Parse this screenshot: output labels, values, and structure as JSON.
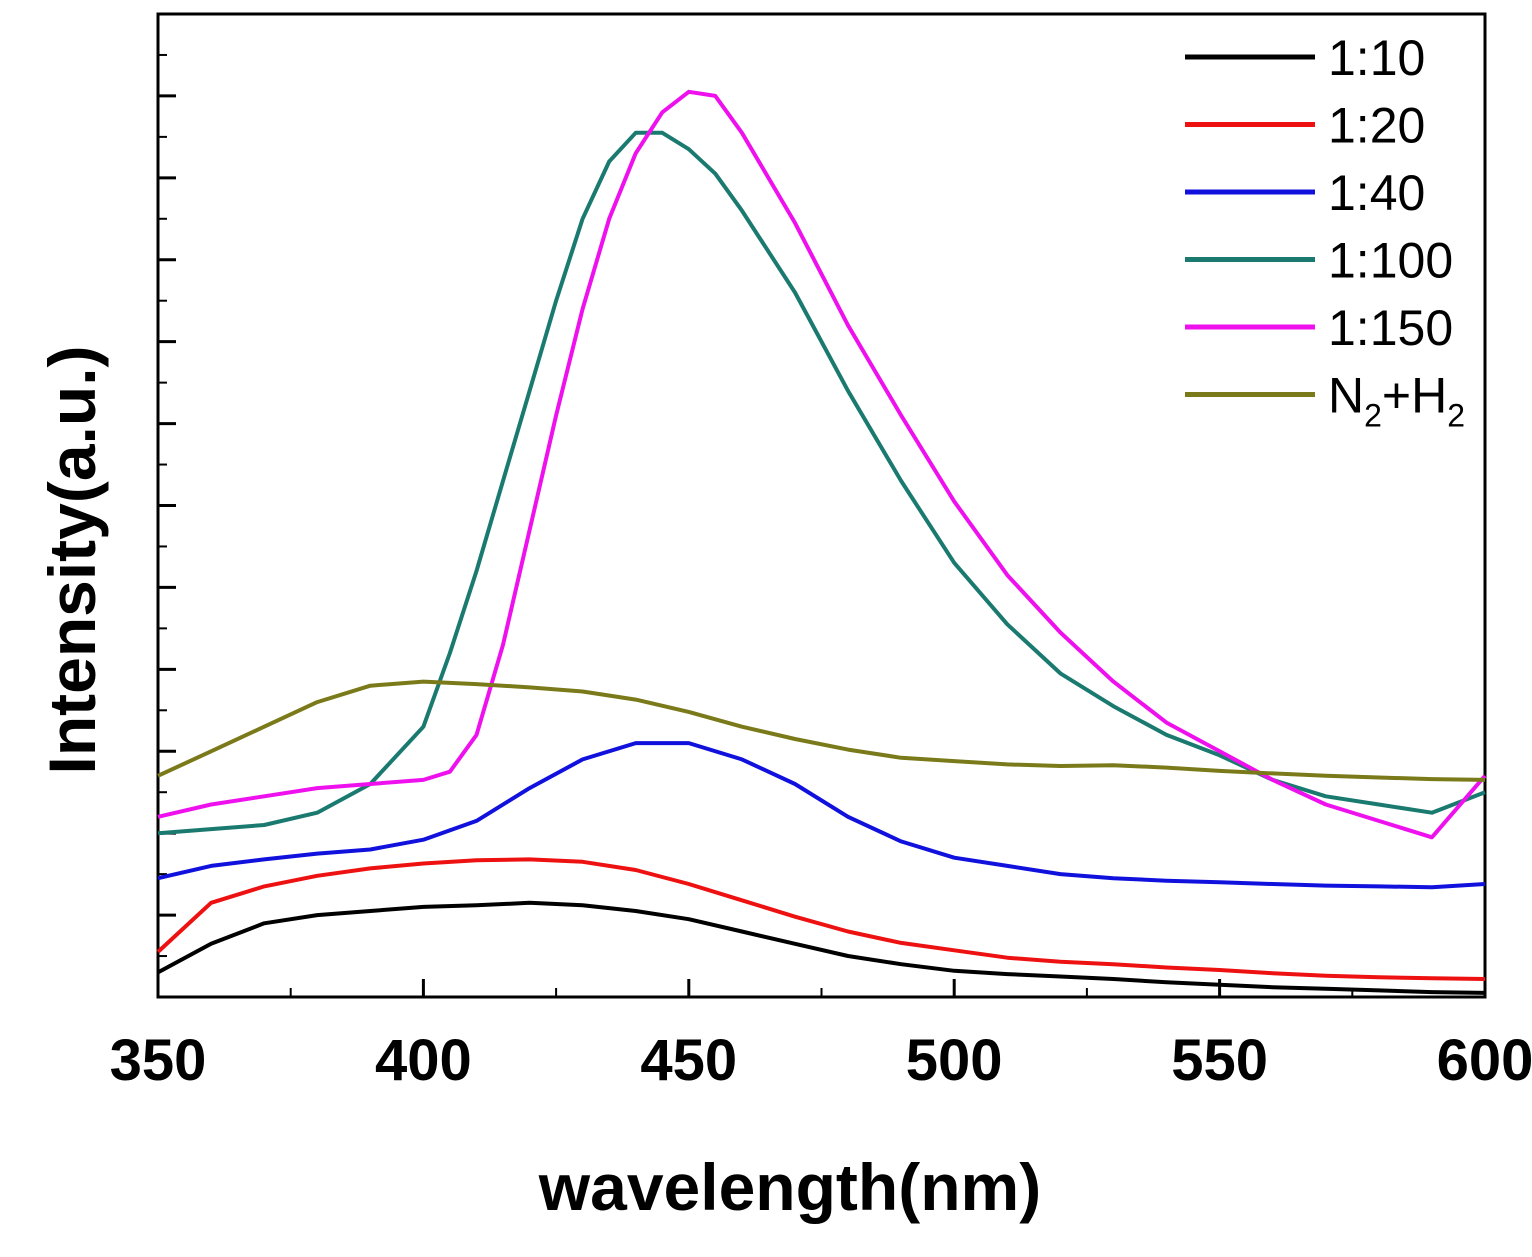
{
  "chart_data": {
    "type": "line",
    "title": "",
    "xlabel": "wavelength(nm)",
    "ylabel": "Intensity(a.u.)",
    "xlim": [
      350,
      600
    ],
    "ylim": [
      0,
      12
    ],
    "x_ticks": [
      350,
      400,
      450,
      500,
      550,
      600
    ],
    "x_tick_labels": [
      "350",
      "400",
      "450",
      "500",
      "550",
      "600"
    ],
    "y_tick_labels_shown": false,
    "grid": false,
    "legend_position": "top-right",
    "series": [
      {
        "name": "1:10",
        "color": "#000000",
        "points": [
          [
            350,
            0.3
          ],
          [
            360,
            0.65
          ],
          [
            370,
            0.9
          ],
          [
            380,
            1.0
          ],
          [
            390,
            1.05
          ],
          [
            400,
            1.1
          ],
          [
            410,
            1.12
          ],
          [
            420,
            1.15
          ],
          [
            430,
            1.12
          ],
          [
            440,
            1.05
          ],
          [
            450,
            0.95
          ],
          [
            460,
            0.8
          ],
          [
            470,
            0.65
          ],
          [
            480,
            0.5
          ],
          [
            490,
            0.4
          ],
          [
            500,
            0.32
          ],
          [
            510,
            0.28
          ],
          [
            520,
            0.25
          ],
          [
            530,
            0.22
          ],
          [
            540,
            0.18
          ],
          [
            550,
            0.15
          ],
          [
            560,
            0.12
          ],
          [
            570,
            0.1
          ],
          [
            580,
            0.08
          ],
          [
            590,
            0.06
          ],
          [
            600,
            0.05
          ]
        ]
      },
      {
        "name": "1:20",
        "color": "#ee1111",
        "points": [
          [
            350,
            0.55
          ],
          [
            360,
            1.15
          ],
          [
            370,
            1.35
          ],
          [
            380,
            1.48
          ],
          [
            390,
            1.57
          ],
          [
            400,
            1.63
          ],
          [
            410,
            1.67
          ],
          [
            420,
            1.68
          ],
          [
            430,
            1.65
          ],
          [
            440,
            1.55
          ],
          [
            450,
            1.38
          ],
          [
            460,
            1.18
          ],
          [
            470,
            0.98
          ],
          [
            480,
            0.8
          ],
          [
            490,
            0.66
          ],
          [
            500,
            0.57
          ],
          [
            510,
            0.48
          ],
          [
            520,
            0.43
          ],
          [
            530,
            0.4
          ],
          [
            540,
            0.36
          ],
          [
            550,
            0.33
          ],
          [
            560,
            0.29
          ],
          [
            570,
            0.26
          ],
          [
            580,
            0.24
          ],
          [
            590,
            0.23
          ],
          [
            600,
            0.22
          ]
        ]
      },
      {
        "name": "1:40",
        "color": "#1111dd",
        "points": [
          [
            350,
            1.45
          ],
          [
            360,
            1.6
          ],
          [
            370,
            1.68
          ],
          [
            380,
            1.75
          ],
          [
            390,
            1.8
          ],
          [
            400,
            1.92
          ],
          [
            410,
            2.15
          ],
          [
            420,
            2.55
          ],
          [
            430,
            2.9
          ],
          [
            440,
            3.1
          ],
          [
            450,
            3.1
          ],
          [
            460,
            2.9
          ],
          [
            470,
            2.6
          ],
          [
            480,
            2.2
          ],
          [
            490,
            1.9
          ],
          [
            500,
            1.7
          ],
          [
            510,
            1.6
          ],
          [
            520,
            1.5
          ],
          [
            530,
            1.45
          ],
          [
            540,
            1.42
          ],
          [
            550,
            1.4
          ],
          [
            560,
            1.38
          ],
          [
            570,
            1.36
          ],
          [
            580,
            1.35
          ],
          [
            590,
            1.34
          ],
          [
            600,
            1.38
          ]
        ]
      },
      {
        "name": "1:100",
        "color": "#1a7a70",
        "points": [
          [
            350,
            2.0
          ],
          [
            360,
            2.05
          ],
          [
            370,
            2.1
          ],
          [
            380,
            2.25
          ],
          [
            390,
            2.6
          ],
          [
            400,
            3.3
          ],
          [
            405,
            4.2
          ],
          [
            410,
            5.2
          ],
          [
            415,
            6.3
          ],
          [
            420,
            7.4
          ],
          [
            425,
            8.5
          ],
          [
            430,
            9.5
          ],
          [
            435,
            10.2
          ],
          [
            440,
            10.55
          ],
          [
            445,
            10.55
          ],
          [
            450,
            10.35
          ],
          [
            455,
            10.05
          ],
          [
            460,
            9.6
          ],
          [
            470,
            8.6
          ],
          [
            480,
            7.4
          ],
          [
            490,
            6.3
          ],
          [
            500,
            5.3
          ],
          [
            510,
            4.55
          ],
          [
            520,
            3.95
          ],
          [
            530,
            3.55
          ],
          [
            540,
            3.2
          ],
          [
            550,
            2.95
          ],
          [
            560,
            2.65
          ],
          [
            570,
            2.45
          ],
          [
            580,
            2.35
          ],
          [
            590,
            2.25
          ],
          [
            600,
            2.5
          ]
        ]
      },
      {
        "name": "1:150",
        "color": "#ee11ee",
        "points": [
          [
            350,
            2.2
          ],
          [
            360,
            2.35
          ],
          [
            370,
            2.45
          ],
          [
            380,
            2.55
          ],
          [
            390,
            2.6
          ],
          [
            400,
            2.65
          ],
          [
            405,
            2.75
          ],
          [
            410,
            3.2
          ],
          [
            415,
            4.3
          ],
          [
            420,
            5.7
          ],
          [
            425,
            7.1
          ],
          [
            430,
            8.4
          ],
          [
            435,
            9.5
          ],
          [
            440,
            10.3
          ],
          [
            445,
            10.8
          ],
          [
            450,
            11.05
          ],
          [
            455,
            11.0
          ],
          [
            460,
            10.55
          ],
          [
            470,
            9.45
          ],
          [
            480,
            8.2
          ],
          [
            490,
            7.1
          ],
          [
            500,
            6.05
          ],
          [
            510,
            5.15
          ],
          [
            520,
            4.45
          ],
          [
            530,
            3.85
          ],
          [
            540,
            3.35
          ],
          [
            550,
            3.0
          ],
          [
            560,
            2.65
          ],
          [
            570,
            2.35
          ],
          [
            580,
            2.15
          ],
          [
            590,
            1.95
          ],
          [
            600,
            2.7
          ]
        ]
      },
      {
        "name": "N2+H2",
        "color": "#7a7a1a",
        "points": [
          [
            350,
            2.7
          ],
          [
            360,
            3.0
          ],
          [
            370,
            3.3
          ],
          [
            380,
            3.6
          ],
          [
            390,
            3.8
          ],
          [
            400,
            3.85
          ],
          [
            410,
            3.82
          ],
          [
            420,
            3.78
          ],
          [
            430,
            3.73
          ],
          [
            440,
            3.63
          ],
          [
            450,
            3.48
          ],
          [
            460,
            3.3
          ],
          [
            470,
            3.15
          ],
          [
            480,
            3.02
          ],
          [
            490,
            2.92
          ],
          [
            500,
            2.88
          ],
          [
            510,
            2.84
          ],
          [
            520,
            2.82
          ],
          [
            530,
            2.83
          ],
          [
            540,
            2.8
          ],
          [
            550,
            2.76
          ],
          [
            560,
            2.73
          ],
          [
            570,
            2.7
          ],
          [
            580,
            2.68
          ],
          [
            590,
            2.66
          ],
          [
            600,
            2.65
          ]
        ]
      }
    ],
    "legend_labels": [
      {
        "main": "1:10",
        "text": "1:10"
      },
      {
        "main": "1:20",
        "text": "1:20"
      },
      {
        "main": "1:40",
        "text": "1:40"
      },
      {
        "main": "1:100",
        "text": "1:100"
      },
      {
        "main": "1:150",
        "text": "1:150"
      },
      {
        "main": "N",
        "sub1": "2",
        "mid": "+H",
        "sub2": "2"
      }
    ]
  }
}
